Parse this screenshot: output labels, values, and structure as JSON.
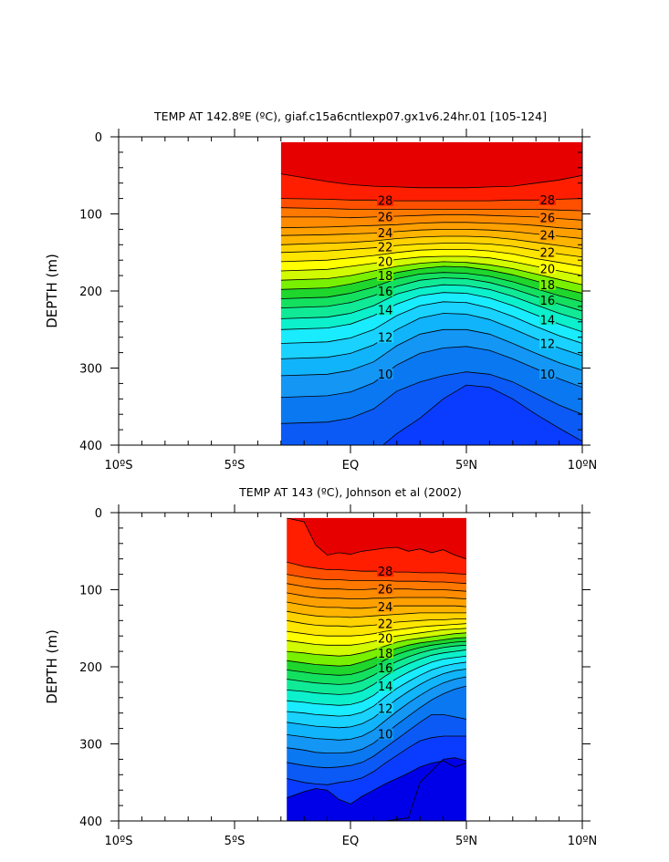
{
  "chart_data": [
    {
      "type": "heatmap",
      "subtype": "filled-contour",
      "title": "TEMP AT 142.8ºE (ºC), giaf.c15a6cntlexp07.gx1v6.24hr.01 [105-124]",
      "xlabel": "",
      "ylabel": "DEPTH (m)",
      "xlim": [
        -10,
        10
      ],
      "ylim": [
        400,
        0
      ],
      "y_inverted": true,
      "x_ticks": [
        -10,
        -5,
        0,
        5,
        10
      ],
      "x_tick_labels": [
        "10ºS",
        "5ºS",
        "EQ",
        "5ºN",
        "10ºN"
      ],
      "y_ticks": [
        0,
        100,
        200,
        300,
        400
      ],
      "y_tick_labels": [
        "0",
        "100",
        "200",
        "300",
        "400"
      ],
      "data_x_range": [
        -3,
        10
      ],
      "data_y_range": [
        7,
        400
      ],
      "contour_interval": 1,
      "labeled_levels": [
        28,
        26,
        24,
        22,
        20,
        18,
        16,
        14,
        12,
        10
      ],
      "isotherm_depths": {
        "lat": [
          -3,
          -1,
          0,
          1,
          2,
          3,
          4,
          5,
          6,
          7,
          8,
          9,
          10
        ],
        "levels": [
          {
            "t": 29,
            "depth": [
              48,
              58,
              62,
              64,
              65,
              66,
              66,
              66,
              65,
              64,
              60,
              56,
              50
            ]
          },
          {
            "t": 28,
            "depth": [
              80,
              81,
              82,
              82,
              83,
              83,
              83,
              83,
              83,
              82,
              82,
              81,
              80
            ]
          },
          {
            "t": 27,
            "depth": [
              92,
              93,
              94,
              94,
              94,
              94,
              94,
              94,
              94,
              94,
              94,
              95,
              96
            ]
          },
          {
            "t": 26,
            "depth": [
              104,
              104,
              105,
              104,
              103,
              102,
              101,
              101,
              102,
              103,
              104,
              106,
              108
            ]
          },
          {
            "t": 25,
            "depth": [
              118,
              117,
              116,
              115,
              114,
              112,
              111,
              111,
              112,
              113,
              115,
              118,
              120
            ]
          },
          {
            "t": 24,
            "depth": [
              128,
              127,
              126,
              125,
              123,
              121,
              120,
              120,
              121,
              123,
              126,
              129,
              132
            ]
          },
          {
            "t": 23,
            "depth": [
              140,
              138,
              137,
              135,
              132,
              130,
              129,
              129,
              130,
              133,
              137,
              141,
              145
            ]
          },
          {
            "t": 22,
            "depth": [
              150,
              148,
              146,
              144,
              141,
              139,
              138,
              138,
              139,
              142,
              147,
              152,
              156
            ]
          },
          {
            "t": 21,
            "depth": [
              162,
              160,
              157,
              154,
              150,
              147,
              146,
              146,
              148,
              152,
              158,
              163,
              168
            ]
          },
          {
            "t": 20,
            "depth": [
              174,
              172,
              168,
              164,
              159,
              156,
              155,
              155,
              157,
              162,
              168,
              174,
              180
            ]
          },
          {
            "t": 19,
            "depth": [
              186,
              184,
              180,
              174,
              168,
              164,
              162,
              163,
              166,
              171,
              178,
              185,
              192
            ]
          },
          {
            "t": 18,
            "depth": [
              198,
              196,
              191,
              184,
              176,
              171,
              168,
              169,
              173,
              179,
              187,
              196,
              203
            ]
          },
          {
            "t": 17,
            "depth": [
              210,
              208,
              203,
              195,
              184,
              178,
              176,
              177,
              181,
              188,
              197,
              206,
              214
            ]
          },
          {
            "t": 16,
            "depth": [
              222,
              220,
              215,
              206,
              194,
              186,
              183,
              184,
              189,
              197,
              207,
              217,
              226
            ]
          },
          {
            "t": 15,
            "depth": [
              236,
              234,
              229,
              219,
              204,
              196,
              192,
              193,
              198,
              207,
              218,
              229,
              238
            ]
          },
          {
            "t": 14,
            "depth": [
              250,
              248,
              243,
              232,
              217,
              206,
              202,
              203,
              209,
              219,
              231,
              243,
              253
            ]
          },
          {
            "t": 13,
            "depth": [
              268,
              266,
              261,
              250,
              232,
              219,
              214,
              215,
              222,
              233,
              246,
              258,
              268
            ]
          },
          {
            "t": 12,
            "depth": [
              288,
              286,
              281,
              270,
              250,
              235,
              229,
              230,
              237,
              249,
              262,
              274,
              284
            ]
          },
          {
            "t": 11,
            "depth": [
              310,
              308,
              303,
              292,
              271,
              256,
              250,
              250,
              256,
              268,
              281,
              293,
              303
            ]
          },
          {
            "t": 10,
            "depth": [
              338,
              336,
              331,
              319,
              296,
              281,
              274,
              272,
              277,
              288,
              301,
              314,
              325
            ]
          },
          {
            "t": 9,
            "depth": [
              372,
              370,
              365,
              353,
              330,
              318,
              310,
              305,
              308,
              318,
              333,
              348,
              360
            ]
          },
          {
            "t": 8,
            "depth": [
              440,
              432,
              420,
              410,
              385,
              365,
              340,
              322,
              325,
              340,
              360,
              378,
              395
            ]
          }
        ]
      }
    },
    {
      "type": "heatmap",
      "subtype": "filled-contour",
      "title": "TEMP AT 143 (ºC), Johnson et al (2002)",
      "xlabel": "",
      "ylabel": "DEPTH (m)",
      "xlim": [
        -10,
        10
      ],
      "ylim": [
        400,
        0
      ],
      "y_inverted": true,
      "x_ticks": [
        -10,
        -5,
        0,
        5,
        10
      ],
      "x_tick_labels": [
        "10ºS",
        "5ºS",
        "EQ",
        "5ºN",
        "10ºN"
      ],
      "y_ticks": [
        0,
        100,
        200,
        300,
        400
      ],
      "y_tick_labels": [
        "0",
        "100",
        "200",
        "300",
        "400"
      ],
      "data_x_range": [
        -2.75,
        5
      ],
      "data_y_range": [
        7,
        400
      ],
      "contour_interval": 1,
      "labeled_levels": [
        28,
        26,
        24,
        22,
        20,
        18,
        16,
        14,
        12,
        10
      ],
      "isotherm_depths": {
        "lat": [
          -2.75,
          -2,
          -1.5,
          -1,
          -0.5,
          0,
          0.5,
          1,
          1.5,
          2,
          2.5,
          3,
          3.5,
          4,
          4.5,
          5
        ],
        "levels": [
          {
            "t": 29,
            "depth": [
              7,
              12,
              42,
              55,
              52,
              54,
              50,
              48,
              46,
              45,
              50,
              47,
              52,
              48,
              55,
              60
            ]
          },
          {
            "t": 28,
            "depth": [
              64,
              70,
              72,
              74,
              74,
              75,
              76,
              76,
              76,
              77,
              77,
              78,
              78,
              78,
              79,
              80
            ]
          },
          {
            "t": 27,
            "depth": [
              80,
              84,
              86,
              87,
              87,
              88,
              88,
              88,
              88,
              89,
              89,
              89,
              90,
              90,
              91,
              92
            ]
          },
          {
            "t": 26,
            "depth": [
              92,
              96,
              98,
              99,
              99,
              100,
              100,
              99,
              99,
              99,
              99,
              100,
              100,
              100,
              101,
              102
            ]
          },
          {
            "t": 25,
            "depth": [
              104,
              108,
              110,
              111,
              111,
              112,
              112,
              111,
              111,
              110,
              110,
              110,
              110,
              110,
              111,
              112
            ]
          },
          {
            "t": 24,
            "depth": [
              116,
              120,
              122,
              123,
              123,
              124,
              124,
              123,
              122,
              121,
              121,
              121,
              121,
              121,
              121,
              122
            ]
          },
          {
            "t": 23,
            "depth": [
              128,
              132,
              134,
              135,
              135,
              136,
              135,
              134,
              133,
              132,
              131,
              130,
              130,
              130,
              130,
              130
            ]
          },
          {
            "t": 22,
            "depth": [
              140,
              144,
              146,
              147,
              147,
              148,
              147,
              146,
              144,
              142,
              141,
              140,
              139,
              139,
              138,
              138
            ]
          },
          {
            "t": 21,
            "depth": [
              154,
              157,
              159,
              160,
              160,
              160,
              159,
              157,
              154,
              152,
              150,
              148,
              147,
              146,
              145,
              144
            ]
          },
          {
            "t": 20,
            "depth": [
              166,
              169,
              171,
              172,
              172,
              172,
              170,
              167,
              163,
              160,
              158,
              156,
              154,
              152,
              151,
              150
            ]
          },
          {
            "t": 19,
            "depth": [
              180,
              182,
              184,
              185,
              186,
              185,
              182,
              178,
              173,
              168,
              165,
              163,
              161,
              159,
              157,
              156
            ]
          },
          {
            "t": 18,
            "depth": [
              192,
              195,
              197,
              198,
              199,
              198,
              194,
              189,
              182,
              176,
              172,
              169,
              167,
              165,
              163,
              162
            ]
          },
          {
            "t": 17,
            "depth": [
              204,
              207,
              209,
              210,
              211,
              210,
              206,
              200,
              191,
              184,
              179,
              175,
              172,
              170,
              168,
              167
            ]
          },
          {
            "t": 16,
            "depth": [
              216,
              219,
              221,
              222,
              223,
              222,
              218,
              211,
              201,
              193,
              187,
              182,
              178,
              175,
              173,
              172
            ]
          },
          {
            "t": 15,
            "depth": [
              230,
              232,
              234,
              235,
              236,
              235,
              231,
              223,
              212,
              203,
              196,
              190,
              185,
              182,
              180,
              178
            ]
          },
          {
            "t": 14,
            "depth": [
              244,
              246,
              248,
              249,
              250,
              249,
              245,
              237,
              225,
              215,
              207,
              200,
              194,
              190,
              188,
              186
            ]
          },
          {
            "t": 13,
            "depth": [
              258,
              260,
              262,
              263,
              264,
              263,
              259,
              251,
              239,
              228,
              219,
              211,
              204,
              199,
              196,
              194
            ]
          },
          {
            "t": 12,
            "depth": [
              272,
              275,
              277,
              278,
              279,
              278,
              274,
              266,
              254,
              242,
              232,
              223,
              215,
              209,
              205,
              203
            ]
          },
          {
            "t": 11,
            "depth": [
              288,
              291,
              293,
              294,
              295,
              294,
              290,
              282,
              270,
              258,
              247,
              237,
              228,
              221,
              216,
              213
            ]
          },
          {
            "t": 10,
            "depth": [
              305,
              308,
              311,
              312,
              312,
              311,
              307,
              299,
              287,
              275,
              264,
              253,
              243,
              235,
              229,
              225
            ]
          },
          {
            "t": 9,
            "depth": [
              324,
              328,
              330,
              331,
              330,
              328,
              324,
              316,
              305,
              294,
              283,
              272,
              262,
              262,
              265,
              268
            ]
          },
          {
            "t": 8,
            "depth": [
              345,
              350,
              352,
              353,
              350,
              348,
              344,
              336,
              325,
              315,
              305,
              296,
              292,
              290,
              290,
              290
            ]
          },
          {
            "t": 7,
            "depth": [
              370,
              362,
              358,
              360,
              372,
              378,
              368,
              360,
              352,
              345,
              338,
              330,
              325,
              322,
              330,
              325
            ]
          },
          {
            "t": 6,
            "depth": [
              440,
              430,
              420,
              415,
              410,
              412,
              410,
              405,
              400,
              398,
              396,
              350,
              335,
              320,
              318,
              322
            ]
          }
        ]
      }
    }
  ]
}
